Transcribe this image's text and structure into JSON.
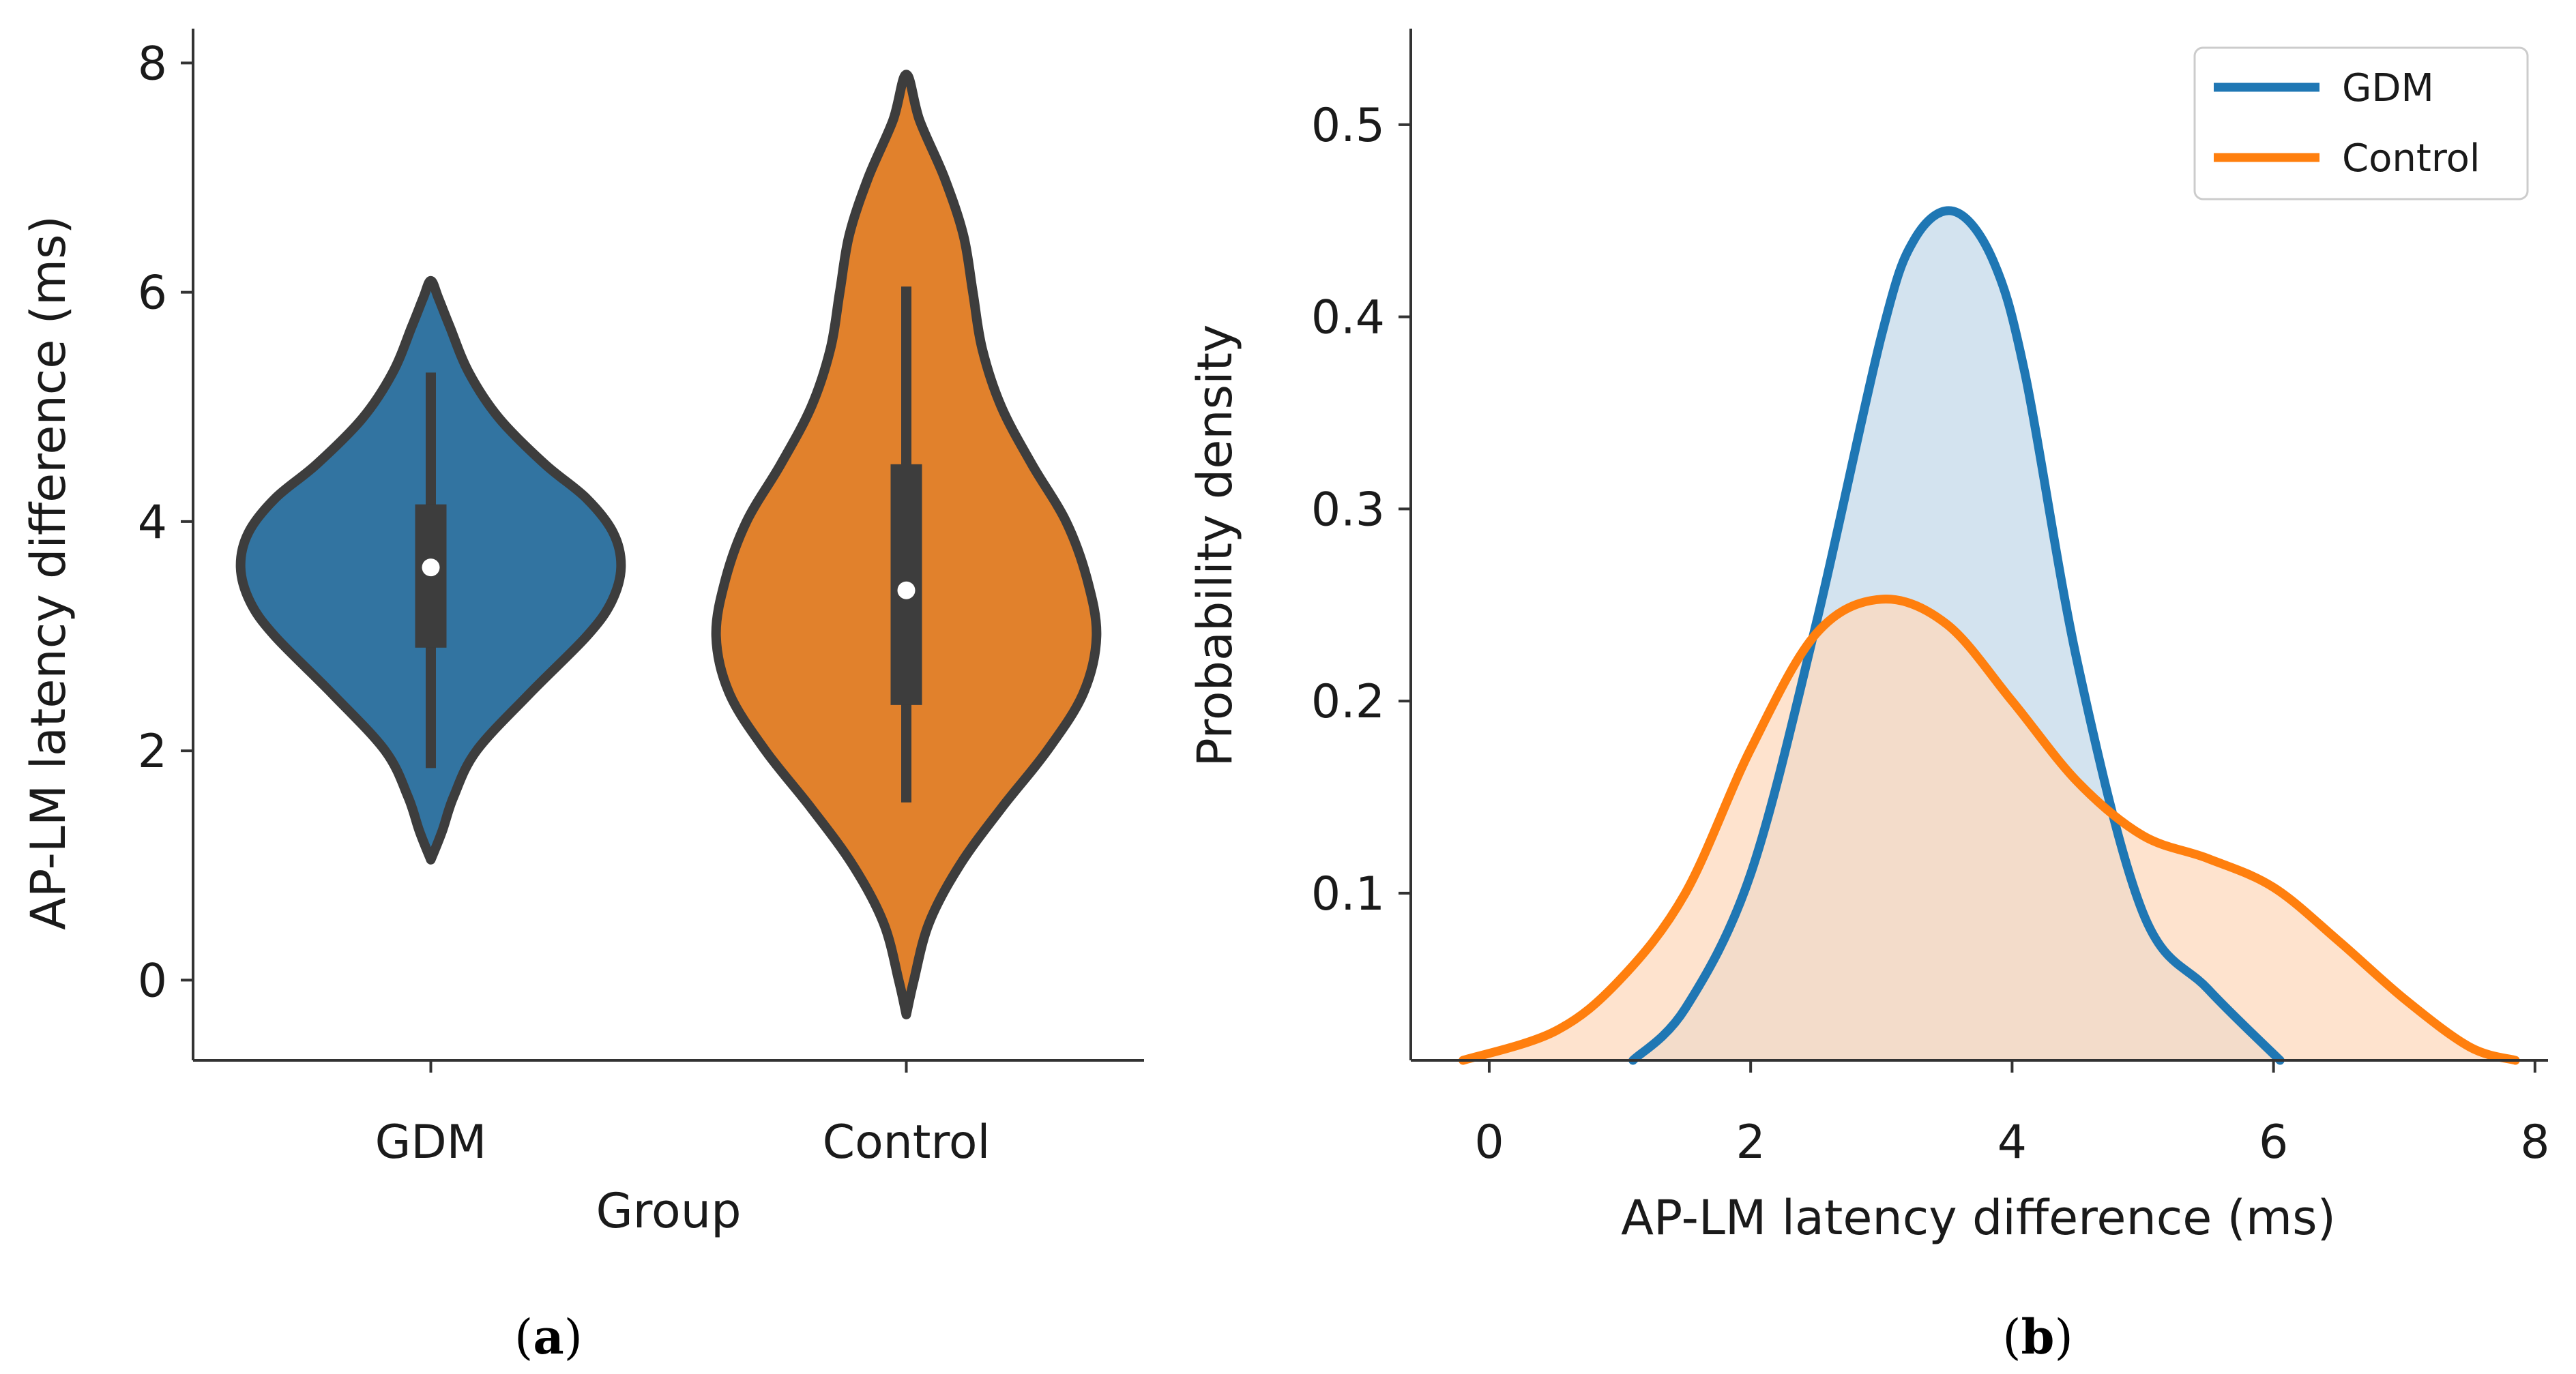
{
  "chart_data": [
    {
      "type": "violin",
      "panel_label": "a",
      "xlabel": "Group",
      "ylabel": "AP-LM latency difference (ms)",
      "ylim": [
        -0.7,
        8.3
      ],
      "yticks": [
        0,
        2,
        4,
        6,
        8
      ],
      "categories": [
        "GDM",
        "Control"
      ],
      "colors": [
        "#3274a1",
        "#e1812c"
      ],
      "violins": [
        {
          "name": "GDM",
          "min": 1.05,
          "max": 6.1,
          "profile_y": [
            1.05,
            1.3,
            1.6,
            2.0,
            2.5,
            3.0,
            3.3,
            3.6,
            3.9,
            4.2,
            4.5,
            4.9,
            5.3,
            5.7,
            5.95,
            6.1
          ],
          "profile_density": [
            0.0,
            0.06,
            0.12,
            0.24,
            0.52,
            0.82,
            0.95,
            1.0,
            0.96,
            0.82,
            0.6,
            0.36,
            0.2,
            0.1,
            0.04,
            0.0
          ],
          "q1": 2.9,
          "median": 3.6,
          "q3": 4.15,
          "whisker_low": 1.85,
          "whisker_high": 5.3
        },
        {
          "name": "Control",
          "min": -0.3,
          "max": 7.9,
          "profile_y": [
            -0.3,
            0.0,
            0.5,
            1.0,
            1.5,
            2.0,
            2.5,
            3.0,
            3.5,
            4.0,
            4.5,
            5.0,
            5.5,
            6.0,
            6.5,
            7.0,
            7.5,
            7.9
          ],
          "profile_density": [
            0.0,
            0.04,
            0.12,
            0.28,
            0.5,
            0.74,
            0.93,
            1.0,
            0.95,
            0.84,
            0.66,
            0.5,
            0.4,
            0.35,
            0.3,
            0.2,
            0.07,
            0.0
          ],
          "q1": 2.4,
          "median": 3.4,
          "q3": 4.5,
          "whisker_low": 1.55,
          "whisker_high": 6.05
        }
      ]
    },
    {
      "type": "kde",
      "panel_label": "b",
      "xlabel": "AP-LM latency difference (ms)",
      "ylabel": "Probability density",
      "xlim": [
        -0.6,
        8.1
      ],
      "ylim": [
        0.013,
        0.55
      ],
      "xticks": [
        0,
        2,
        4,
        6,
        8
      ],
      "yticks": [
        0.1,
        0.2,
        0.3,
        0.4,
        0.5
      ],
      "legend": {
        "position": "top-right"
      },
      "series": [
        {
          "name": "GDM",
          "color": "#1f77b4",
          "fill": "#c4d9ea",
          "x": [
            1.1,
            1.5,
            2.0,
            2.5,
            3.0,
            3.25,
            3.55,
            3.85,
            4.1,
            4.5,
            5.0,
            5.5,
            6.05
          ],
          "y": [
            0.013,
            0.04,
            0.11,
            0.24,
            0.39,
            0.44,
            0.455,
            0.43,
            0.37,
            0.22,
            0.09,
            0.05,
            0.013
          ]
        },
        {
          "name": "Control",
          "color": "#ff7f0e",
          "fill": "#fdd9bd",
          "x": [
            -0.2,
            0.5,
            1.0,
            1.5,
            2.0,
            2.5,
            3.0,
            3.5,
            4.0,
            4.5,
            5.0,
            5.5,
            6.0,
            6.5,
            7.0,
            7.5,
            7.85
          ],
          "y": [
            0.013,
            0.028,
            0.055,
            0.1,
            0.175,
            0.235,
            0.253,
            0.24,
            0.2,
            0.158,
            0.13,
            0.118,
            0.103,
            0.075,
            0.045,
            0.02,
            0.013
          ]
        }
      ]
    }
  ]
}
